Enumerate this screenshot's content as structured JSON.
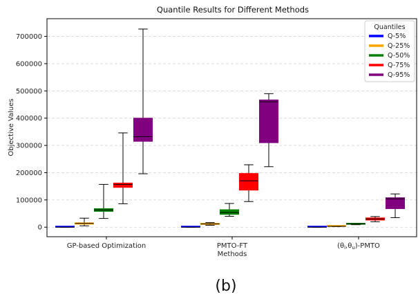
{
  "chart_data": {
    "type": "box",
    "title": "Quantile Results for Different Methods",
    "xlabel": "Methods",
    "ylabel": "Objective Values",
    "caption": "(b)",
    "categories": [
      "GP-based Optimization",
      "PMTO-FT",
      "(θl,θu)-PMTO"
    ],
    "ylim": [
      -35000,
      765000
    ],
    "yticks": [
      0,
      100000,
      200000,
      300000,
      400000,
      500000,
      600000,
      700000
    ],
    "ytick_labels": [
      "0",
      "100000",
      "200000",
      "300000",
      "400000",
      "500000",
      "600000",
      "700000"
    ],
    "grid": "horizontal-dashed",
    "legend": {
      "title": "Quantiles",
      "placement": "top-right"
    },
    "series": [
      {
        "name": "Q-5%",
        "color": "#0000ff",
        "boxes": [
          {
            "whislo": 0,
            "q1": 0,
            "median": 0,
            "q3": 0,
            "whishi": 0
          },
          {
            "whislo": 0,
            "q1": 0,
            "median": 0,
            "q3": 0,
            "whishi": 0
          },
          {
            "whislo": 0,
            "q1": 0,
            "median": 0,
            "q3": 0,
            "whishi": 0
          }
        ]
      },
      {
        "name": "Q-25%",
        "color": "#ffa500",
        "boxes": [
          {
            "whislo": 5000,
            "q1": 11000,
            "median": 14000,
            "q3": 16000,
            "whishi": 33000
          },
          {
            "whislo": 7000,
            "q1": 10000,
            "median": 12000,
            "q3": 14000,
            "whishi": 17000
          },
          {
            "whislo": 2000,
            "q1": 2500,
            "median": 3000,
            "q3": 3500,
            "whishi": 4500
          }
        ]
      },
      {
        "name": "Q-50%",
        "color": "#008000",
        "boxes": [
          {
            "whislo": 32000,
            "q1": 58000,
            "median": 63000,
            "q3": 68000,
            "whishi": 157000
          },
          {
            "whislo": 40000,
            "q1": 47000,
            "median": 54000,
            "q3": 64000,
            "whishi": 87000
          },
          {
            "whislo": 9000,
            "q1": 10500,
            "median": 12000,
            "q3": 13000,
            "whishi": 14000
          }
        ]
      },
      {
        "name": "Q-75%",
        "color": "#ff0000",
        "boxes": [
          {
            "whislo": 86000,
            "q1": 146000,
            "median": 157000,
            "q3": 162000,
            "whishi": 346000
          },
          {
            "whislo": 94000,
            "q1": 136000,
            "median": 170000,
            "q3": 197000,
            "whishi": 229000
          },
          {
            "whislo": 20000,
            "q1": 26000,
            "median": 30000,
            "q3": 34000,
            "whishi": 39000
          }
        ]
      },
      {
        "name": "Q-95%",
        "color": "#800080",
        "boxes": [
          {
            "whislo": 196000,
            "q1": 315000,
            "median": 332000,
            "q3": 400000,
            "whishi": 727000
          },
          {
            "whislo": 222000,
            "q1": 310000,
            "median": 460000,
            "q3": 467000,
            "whishi": 490000
          },
          {
            "whislo": 35000,
            "q1": 68000,
            "median": 104000,
            "q3": 108000,
            "whishi": 122000
          }
        ]
      }
    ]
  }
}
